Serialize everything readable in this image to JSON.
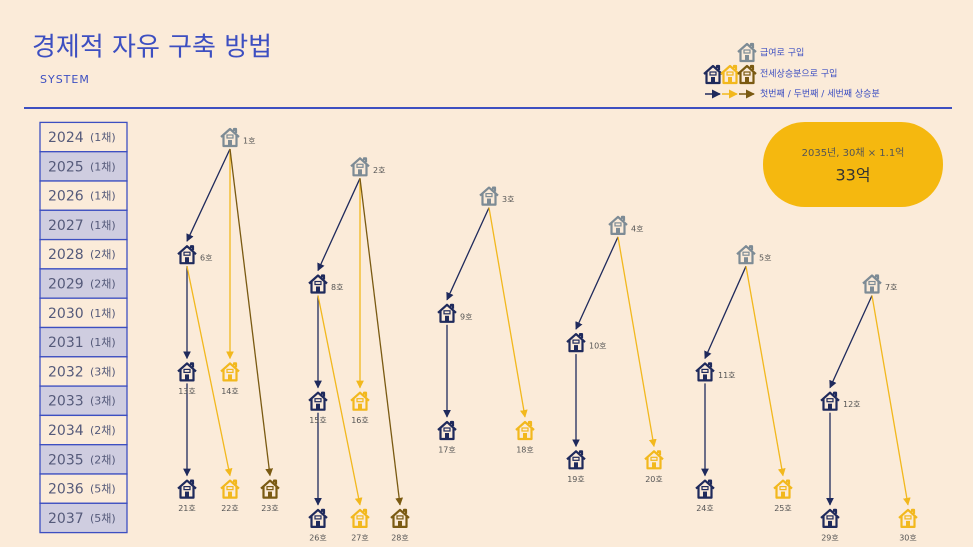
{
  "header": {
    "title": "경제적 자유 구축 방법",
    "subtitle": "SYSTEM"
  },
  "legend": [
    {
      "label": "급여로 구입"
    },
    {
      "label": "전세상승분으로 구입"
    },
    {
      "label": "첫번째 / 두번째 / 세번째 상승분"
    }
  ],
  "years": [
    {
      "year": "2024",
      "count": "(1채)"
    },
    {
      "year": "2025",
      "count": "(1채)"
    },
    {
      "year": "2026",
      "count": "(1채)"
    },
    {
      "year": "2027",
      "count": "(1채)"
    },
    {
      "year": "2028",
      "count": "(2채)"
    },
    {
      "year": "2029",
      "count": "(2채)"
    },
    {
      "year": "2030",
      "count": "(1채)"
    },
    {
      "year": "2031",
      "count": "(1채)"
    },
    {
      "year": "2032",
      "count": "(3채)"
    },
    {
      "year": "2033",
      "count": "(3채)"
    },
    {
      "year": "2034",
      "count": "(2채)"
    },
    {
      "year": "2035",
      "count": "(2채)"
    },
    {
      "year": "2036",
      "count": "(5채)"
    },
    {
      "year": "2037",
      "count": "(5채)"
    }
  ],
  "callout": {
    "line1": "2035년, 30채 × 1.1억",
    "line2": "33억"
  },
  "houses": [
    {
      "label": "1호",
      "color": "#7d8b95"
    },
    {
      "label": "2호",
      "color": "#7d8b95"
    },
    {
      "label": "3호",
      "color": "#7d8b95"
    },
    {
      "label": "4호",
      "color": "#7d8b95"
    },
    {
      "label": "5호",
      "color": "#7d8b95"
    },
    {
      "label": "6호",
      "color": "#1f2a5c"
    },
    {
      "label": "7호",
      "color": "#7d8b95"
    },
    {
      "label": "8호",
      "color": "#1f2a5c"
    },
    {
      "label": "9호",
      "color": "#1f2a5c"
    },
    {
      "label": "10호",
      "color": "#1f2a5c"
    },
    {
      "label": "11호",
      "color": "#1f2a5c"
    },
    {
      "label": "12호",
      "color": "#1f2a5c"
    },
    {
      "label": "13호",
      "color": "#1f2a5c"
    },
    {
      "label": "14호",
      "color": "#f2b81d"
    },
    {
      "label": "15호",
      "color": "#1f2a5c"
    },
    {
      "label": "16호",
      "color": "#f2b81d"
    },
    {
      "label": "17호",
      "color": "#1f2a5c"
    },
    {
      "label": "18호",
      "color": "#f2b81d"
    },
    {
      "label": "19호",
      "color": "#1f2a5c"
    },
    {
      "label": "20호",
      "color": "#f2b81d"
    },
    {
      "label": "21호",
      "color": "#1f2a5c"
    },
    {
      "label": "22호",
      "color": "#f2b81d"
    },
    {
      "label": "23호",
      "color": "#7a5a12"
    },
    {
      "label": "24호",
      "color": "#1f2a5c"
    },
    {
      "label": "25호",
      "color": "#f2b81d"
    },
    {
      "label": "26호",
      "color": "#1f2a5c"
    },
    {
      "label": "27호",
      "color": "#f2b81d"
    },
    {
      "label": "28호",
      "color": "#7a5a12"
    },
    {
      "label": "29호",
      "color": "#1f2a5c"
    },
    {
      "label": "30호",
      "color": "#f2b81d"
    }
  ]
}
